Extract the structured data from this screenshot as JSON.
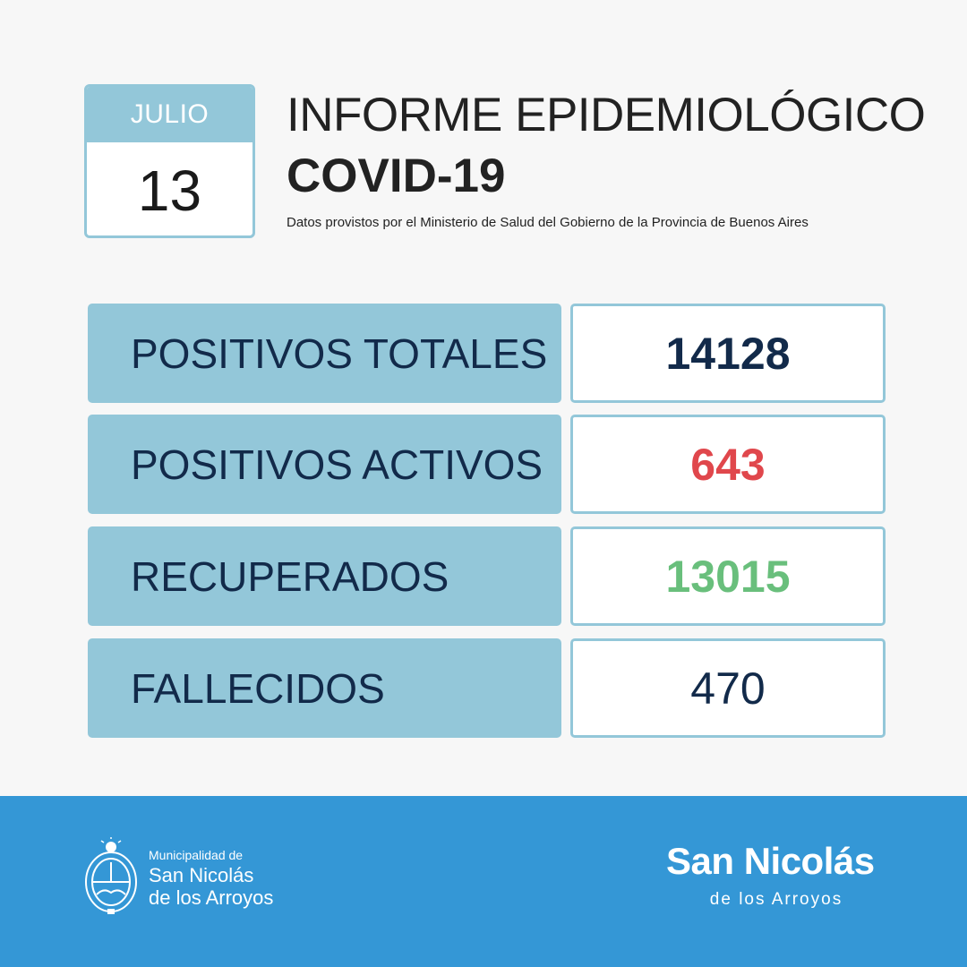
{
  "calendar": {
    "month": "JULIO",
    "day": "13"
  },
  "header": {
    "title_line1": "INFORME EPIDEMIOLÓGICO",
    "title_line2": "COVID-19",
    "subtitle": "Datos provistos por el Ministerio de Salud del Gobierno de la Provincia de Buenos Aires"
  },
  "stats": [
    {
      "label": "POSITIVOS TOTALES",
      "value": "14128",
      "value_color": "#122a4a"
    },
    {
      "label": "POSITIVOS ACTIVOS",
      "value": "643",
      "value_color": "#e0474c"
    },
    {
      "label": "RECUPERADOS",
      "value": "13015",
      "value_color": "#69bf7c"
    },
    {
      "label": "FALLECIDOS",
      "value": "470",
      "value_color": "#122a4a"
    }
  ],
  "footer": {
    "seal_icon": "coat-of-arms-icon",
    "municipality_prefix": "Municipalidad de",
    "municipality_name_line1": "San Nicolás",
    "municipality_name_line2": "de los Arroyos",
    "brand_name": "San Nicolás",
    "brand_sub": "de los Arroyos"
  },
  "colors": {
    "accent": "#93c7d9",
    "footer_bg": "#3497d6",
    "navy": "#122a4a"
  }
}
